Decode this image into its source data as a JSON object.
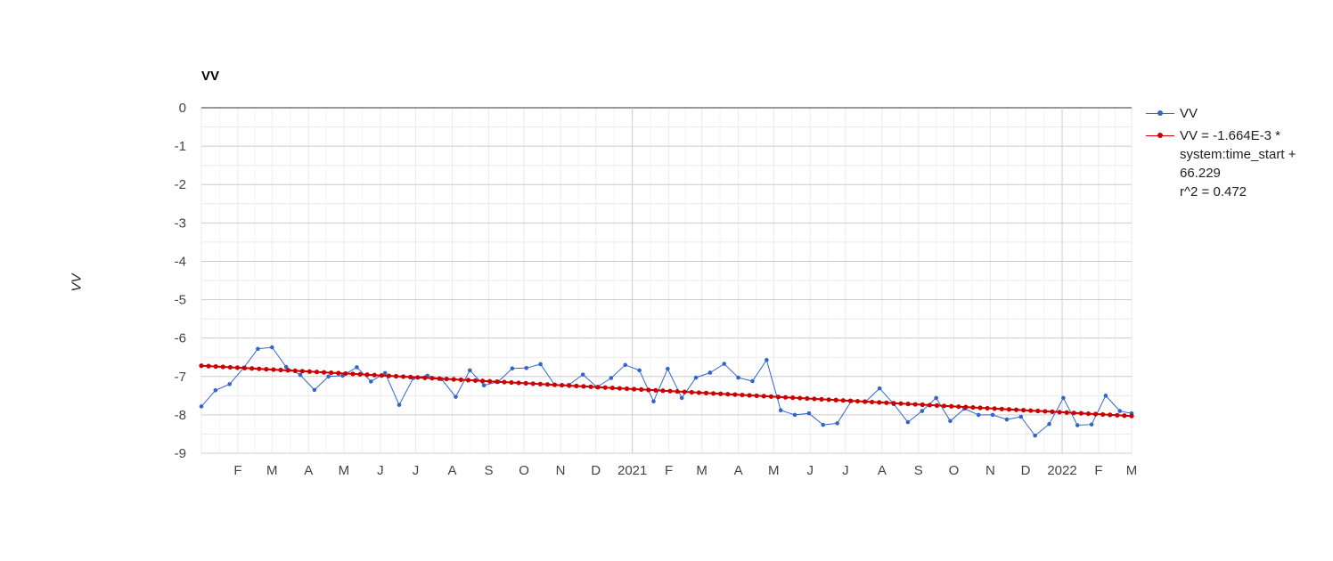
{
  "chart_data": {
    "type": "line",
    "title": "VV",
    "ylabel": "VV",
    "xlabel": "",
    "ylim": [
      -9,
      0
    ],
    "yticks": [
      0,
      -1,
      -2,
      -3,
      -4,
      -5,
      -6,
      -7,
      -8,
      -9
    ],
    "xlim": [
      "2020-01-01",
      "2022-03-01"
    ],
    "xticks": [
      {
        "label": "F",
        "date": "2020-02-01"
      },
      {
        "label": "M",
        "date": "2020-03-01"
      },
      {
        "label": "A",
        "date": "2020-04-01"
      },
      {
        "label": "M",
        "date": "2020-05-01"
      },
      {
        "label": "J",
        "date": "2020-06-01"
      },
      {
        "label": "J",
        "date": "2020-07-01"
      },
      {
        "label": "A",
        "date": "2020-08-01"
      },
      {
        "label": "S",
        "date": "2020-09-01"
      },
      {
        "label": "O",
        "date": "2020-10-01"
      },
      {
        "label": "N",
        "date": "2020-11-01"
      },
      {
        "label": "D",
        "date": "2020-12-01"
      },
      {
        "label": "2021",
        "date": "2021-01-01"
      },
      {
        "label": "F",
        "date": "2021-02-01"
      },
      {
        "label": "M",
        "date": "2021-03-01"
      },
      {
        "label": "A",
        "date": "2021-04-01"
      },
      {
        "label": "M",
        "date": "2021-05-01"
      },
      {
        "label": "J",
        "date": "2021-06-01"
      },
      {
        "label": "J",
        "date": "2021-07-01"
      },
      {
        "label": "A",
        "date": "2021-08-01"
      },
      {
        "label": "S",
        "date": "2021-09-01"
      },
      {
        "label": "O",
        "date": "2021-10-01"
      },
      {
        "label": "N",
        "date": "2021-11-01"
      },
      {
        "label": "D",
        "date": "2021-12-01"
      },
      {
        "label": "2022",
        "date": "2022-01-01"
      },
      {
        "label": "F",
        "date": "2022-02-01"
      },
      {
        "label": "M",
        "date": "2022-03-01"
      }
    ],
    "grid": true,
    "legend_position": "right",
    "series": [
      {
        "name": "VV",
        "color": "#3366cc",
        "x": [
          "2020-01-01",
          "2020-01-13",
          "2020-01-25",
          "2020-02-06",
          "2020-02-18",
          "2020-03-01",
          "2020-03-13",
          "2020-03-25",
          "2020-04-06",
          "2020-04-18",
          "2020-04-30",
          "2020-05-12",
          "2020-05-24",
          "2020-06-05",
          "2020-06-17",
          "2020-06-29",
          "2020-07-11",
          "2020-07-23",
          "2020-08-04",
          "2020-08-16",
          "2020-08-28",
          "2020-09-09",
          "2020-09-21",
          "2020-10-03",
          "2020-10-15",
          "2020-10-27",
          "2020-11-08",
          "2020-11-20",
          "2020-12-02",
          "2020-12-14",
          "2020-12-26",
          "2021-01-07",
          "2021-01-19",
          "2021-01-31",
          "2021-02-12",
          "2021-02-24",
          "2021-03-08",
          "2021-03-20",
          "2021-04-01",
          "2021-04-13",
          "2021-04-25",
          "2021-05-07",
          "2021-05-19",
          "2021-05-31",
          "2021-06-12",
          "2021-06-24",
          "2021-07-06",
          "2021-07-18",
          "2021-07-30",
          "2021-08-11",
          "2021-08-23",
          "2021-09-04",
          "2021-09-16",
          "2021-09-28",
          "2021-10-10",
          "2021-10-22",
          "2021-11-03",
          "2021-11-15",
          "2021-11-27",
          "2021-12-09",
          "2021-12-21",
          "2022-01-02",
          "2022-01-14",
          "2022-01-26",
          "2022-02-07",
          "2022-02-19",
          "2022-03-01"
        ],
        "values": [
          -7.78,
          -7.36,
          -7.2,
          -6.77,
          -6.28,
          -6.24,
          -6.75,
          -6.96,
          -7.35,
          -7.0,
          -6.98,
          -6.76,
          -7.13,
          -6.91,
          -7.74,
          -7.04,
          -6.98,
          -7.07,
          -7.53,
          -6.84,
          -7.23,
          -7.14,
          -6.79,
          -6.78,
          -6.68,
          -7.22,
          -7.22,
          -6.95,
          -7.28,
          -7.04,
          -6.7,
          -6.84,
          -7.65,
          -6.8,
          -7.56,
          -7.03,
          -6.9,
          -6.67,
          -7.03,
          -7.12,
          -6.57,
          -7.88,
          -8.0,
          -7.96,
          -8.26,
          -8.22,
          -7.64,
          -7.66,
          -7.31,
          -7.72,
          -8.19,
          -7.9,
          -7.56,
          -8.16,
          -7.84,
          -8.0,
          -8.0,
          -8.12,
          -8.05,
          -8.54,
          -8.24,
          -7.56,
          -8.27,
          -8.25,
          -7.5,
          -7.9,
          -7.96
        ]
      },
      {
        "name": "VV = -1.664E-3 *\nsystem:time_start +\n66.229\nr^2 = 0.472",
        "color": "#cc0000",
        "type": "trendline",
        "x_start": "2020-01-01",
        "x_end": "2022-03-01",
        "y_start": -6.72,
        "y_end": -8.03,
        "points": 130
      }
    ]
  }
}
